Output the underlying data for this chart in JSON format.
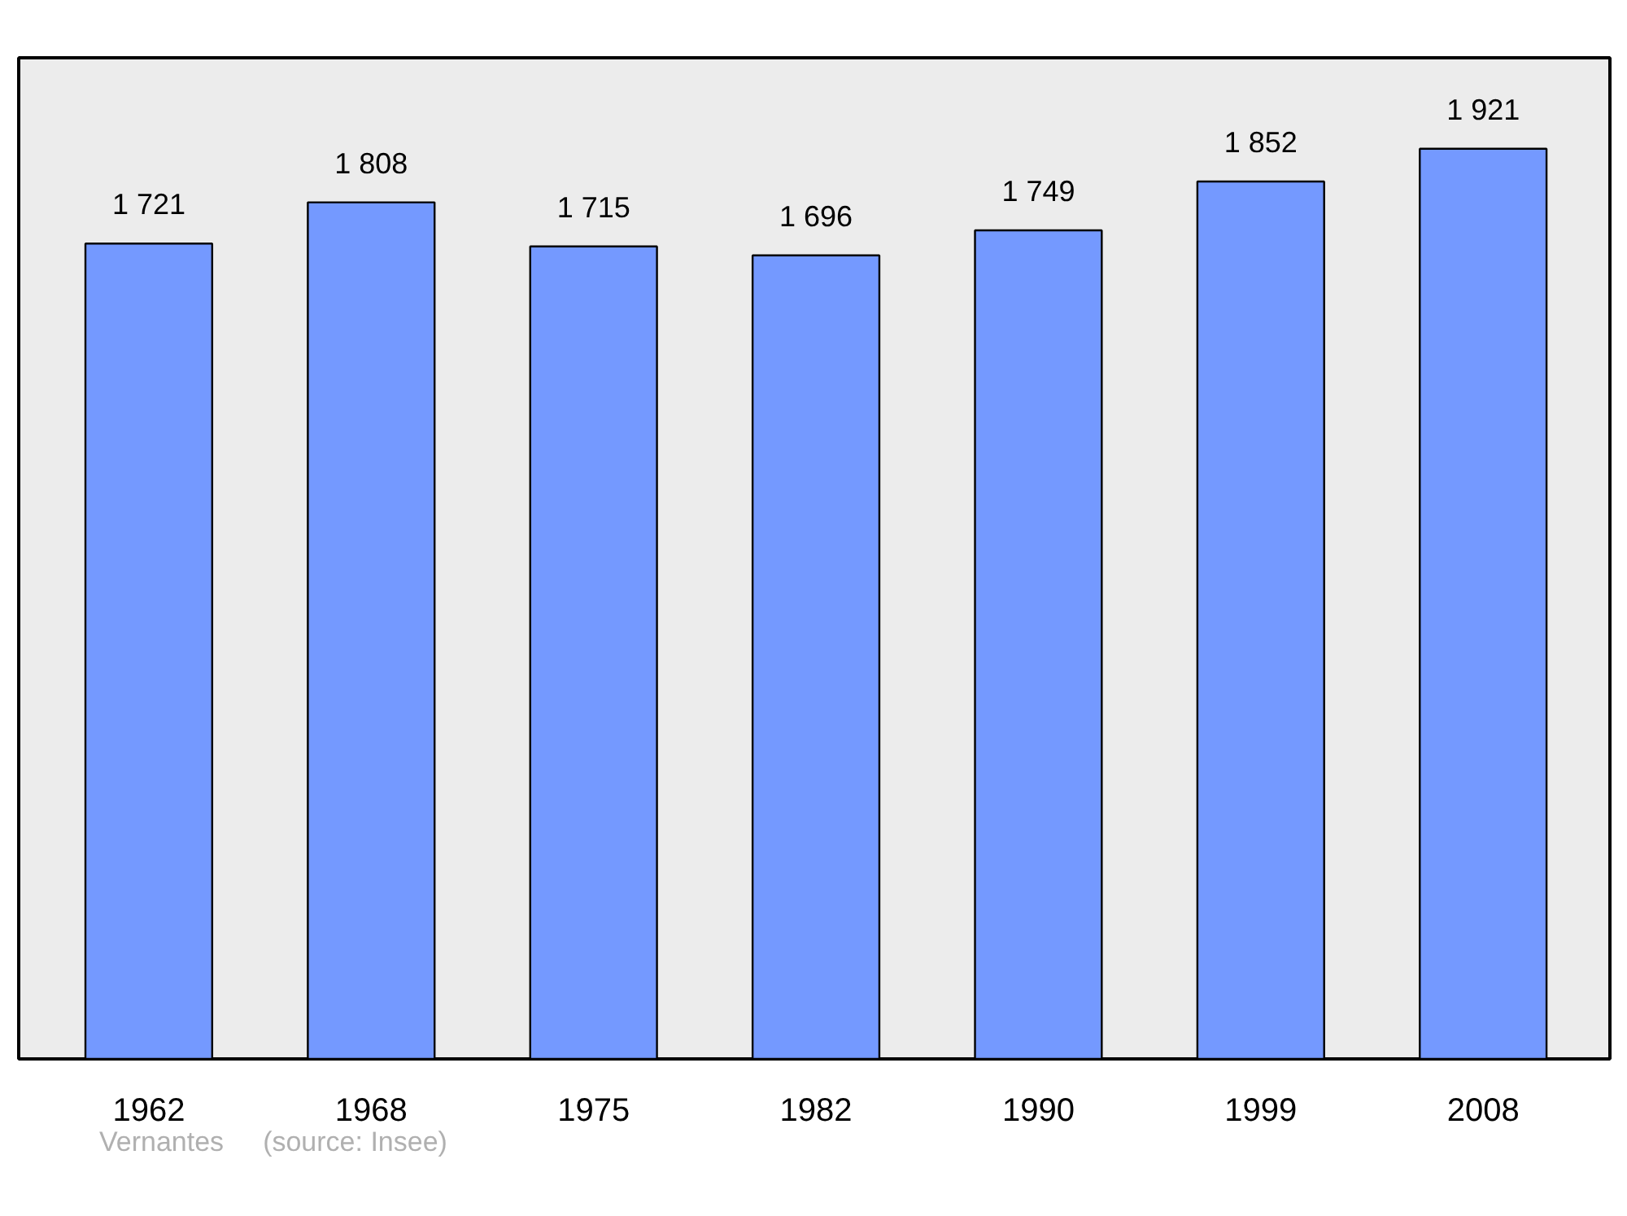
{
  "chart_data": {
    "type": "bar",
    "categories": [
      "1962",
      "1968",
      "1975",
      "1982",
      "1990",
      "1999",
      "2008"
    ],
    "values": [
      1721,
      1808,
      1715,
      1696,
      1749,
      1852,
      1921
    ],
    "value_labels": [
      "1 721",
      "1 808",
      "1 715",
      "1 696",
      "1 749",
      "1 852",
      "1 921"
    ],
    "color": "#7499ff",
    "grid": false,
    "tick_labels": "x",
    "annotations": [
      "Vernantes",
      "(source: Insee)"
    ]
  }
}
